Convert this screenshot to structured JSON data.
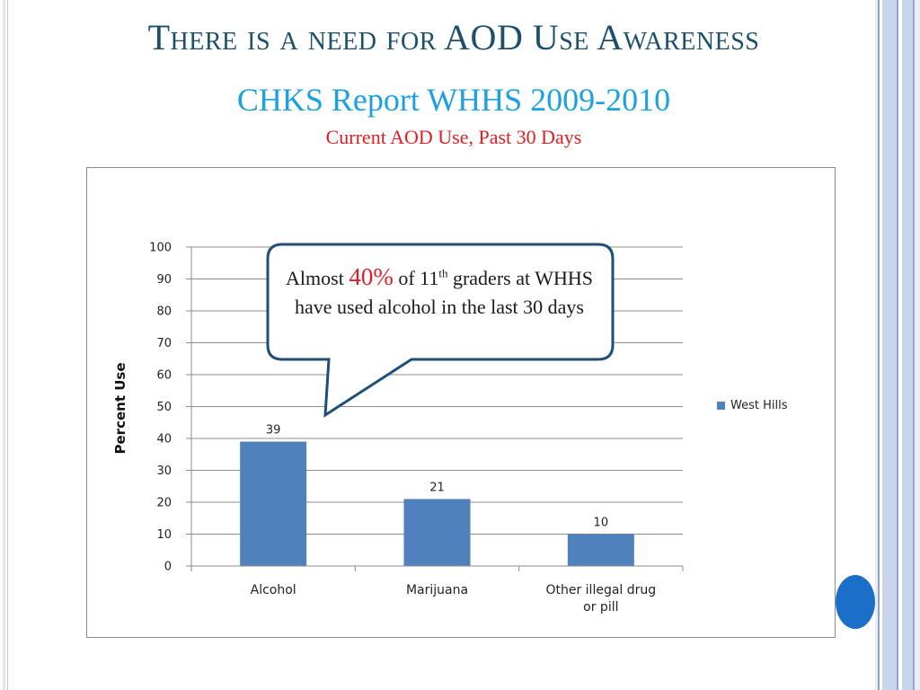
{
  "slide": {
    "title": "There is a need for AOD Use Awareness",
    "subtitle": "CHKS Report WHHS 2009-2010",
    "subsubtitle": "Current AOD Use, Past 30 Days"
  },
  "callout": {
    "prefix": "Almost ",
    "highlight": "40%",
    "part1": " of 11",
    "superscript": "th",
    "part2": " graders at WHHS have used alcohol in the last 30 days"
  },
  "colors": {
    "bar": "#4f81bd",
    "title": "#1b4f6b",
    "subtitle": "#1ba1e2",
    "accent_red": "#e01f25",
    "callout_border": "#1f4e79"
  },
  "chart_data": {
    "type": "bar",
    "categories": [
      "Alcohol",
      "Marijuana",
      "Other illegal drug or pill"
    ],
    "series": [
      {
        "name": "West Hills",
        "values": [
          39,
          21,
          10
        ]
      }
    ],
    "data_labels": [
      "39",
      "21",
      "10"
    ],
    "ylabel": "Percent Use",
    "xlabel": "",
    "ylim": [
      0,
      100
    ],
    "yticks": [
      0,
      10,
      20,
      30,
      40,
      50,
      60,
      70,
      80,
      90,
      100
    ],
    "grid": true,
    "legend": "right"
  }
}
